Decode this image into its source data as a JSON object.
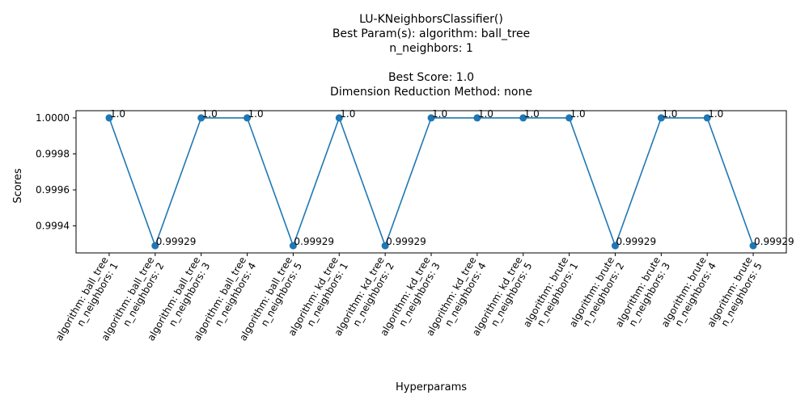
{
  "chart_data": {
    "type": "line",
    "title_lines": [
      "LU-KNeighborsClassifier()",
      "Best Param(s): algorithm: ball_tree",
      "n_neighbors: 1",
      "",
      "Best Score: 1.0",
      "Dimension Reduction Method: none"
    ],
    "xlabel": "Hyperparams",
    "ylabel": "Scores",
    "ylim": [
      0.99925,
      1.00004
    ],
    "yticks": [
      0.9994,
      0.9996,
      0.9998,
      1.0
    ],
    "ytick_labels": [
      "0.9994",
      "0.9996",
      "0.9998",
      "1.0000"
    ],
    "grid": false,
    "color": "#1f77b4",
    "categories": [
      [
        "algorithm: ball_tree",
        "n_neighbors: 1"
      ],
      [
        "algorithm: ball_tree",
        "n_neighbors: 2"
      ],
      [
        "algorithm: ball_tree",
        "n_neighbors: 3"
      ],
      [
        "algorithm: ball_tree",
        "n_neighbors: 4"
      ],
      [
        "algorithm: ball_tree",
        "n_neighbors: 5"
      ],
      [
        "algorithm: kd_tree",
        "n_neighbors: 1"
      ],
      [
        "algorithm: kd_tree",
        "n_neighbors: 2"
      ],
      [
        "algorithm: kd_tree",
        "n_neighbors: 3"
      ],
      [
        "algorithm: kd_tree",
        "n_neighbors: 4"
      ],
      [
        "algorithm: kd_tree",
        "n_neighbors: 5"
      ],
      [
        "algorithm: brute",
        "n_neighbors: 1"
      ],
      [
        "algorithm: brute",
        "n_neighbors: 2"
      ],
      [
        "algorithm: brute",
        "n_neighbors: 3"
      ],
      [
        "algorithm: brute",
        "n_neighbors: 4"
      ],
      [
        "algorithm: brute",
        "n_neighbors: 5"
      ]
    ],
    "values": [
      1.0,
      0.99929,
      1.0,
      1.0,
      0.99929,
      1.0,
      0.99929,
      1.0,
      1.0,
      1.0,
      1.0,
      0.99929,
      1.0,
      1.0,
      0.99929
    ],
    "data_labels": [
      "1.0",
      "0.99929",
      "1.0",
      "1.0",
      "0.99929",
      "1.0",
      "0.99929",
      "1.0",
      "1.0",
      "1.0",
      "1.0",
      "0.99929",
      "1.0",
      "1.0",
      "0.99929"
    ]
  }
}
